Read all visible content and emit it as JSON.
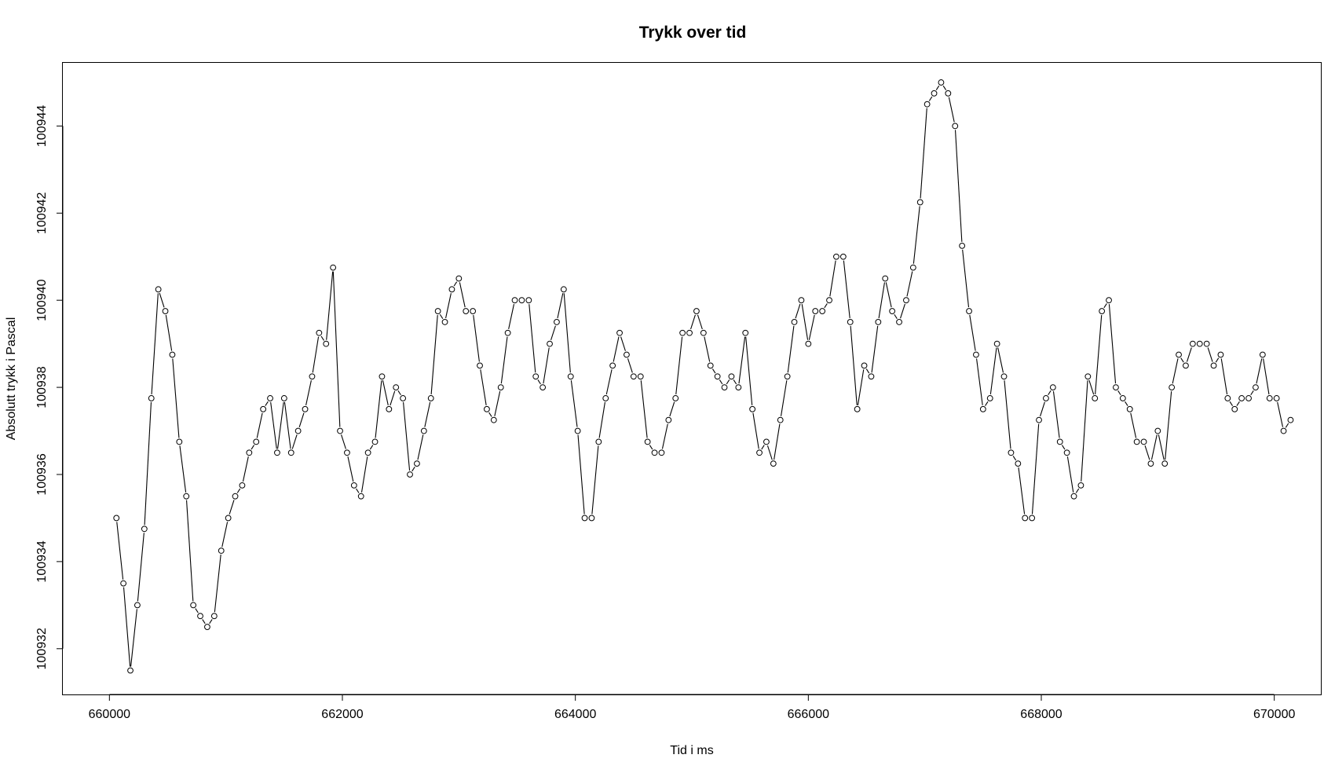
{
  "chart_data": {
    "type": "line",
    "title": "Trykk over tid",
    "xlabel": "Tid i ms",
    "ylabel": "Absolutt trykk i Pascal",
    "xlim": [
      659600,
      670400
    ],
    "ylim": [
      100930.95,
      100945.45
    ],
    "x_ticks": [
      660000,
      662000,
      664000,
      666000,
      668000,
      670000
    ],
    "x_tick_labels": [
      "660000",
      "662000",
      "664000",
      "666000",
      "668000",
      "670000"
    ],
    "y_ticks": [
      100932,
      100934,
      100936,
      100938,
      100940,
      100942,
      100944
    ],
    "y_tick_labels": [
      "100932",
      "100934",
      "100936",
      "100938",
      "100940",
      "100942",
      "100944"
    ],
    "grid": false,
    "legend": "none",
    "marker": "open-circle",
    "series": [
      {
        "x_start": 660060,
        "x_step": 60,
        "values": [
          100935,
          100933.5,
          100931.5,
          100933,
          100934.75,
          100937.75,
          100940.25,
          100939.75,
          100938.75,
          100936.75,
          100935.5,
          100933,
          100932.75,
          100932.5,
          100932.75,
          100934.25,
          100935,
          100935.5,
          100935.75,
          100936.5,
          100936.75,
          100937.5,
          100937.75,
          100936.5,
          100937.75,
          100936.5,
          100937,
          100937.5,
          100938.25,
          100939.25,
          100939,
          100940.75,
          100937,
          100936.5,
          100935.75,
          100935.5,
          100936.5,
          100936.75,
          100938.25,
          100937.5,
          100938,
          100937.75,
          100936,
          100936.25,
          100937,
          100937.75,
          100939.75,
          100939.5,
          100940.25,
          100940.5,
          100939.75,
          100939.75,
          100938.5,
          100937.5,
          100937.25,
          100938,
          100939.25,
          100940,
          100940,
          100940,
          100938.25,
          100938,
          100939,
          100939.5,
          100940.25,
          100938.25,
          100937,
          100935,
          100935,
          100936.75,
          100937.75,
          100938.5,
          100939.25,
          100938.75,
          100938.25,
          100938.25,
          100936.75,
          100936.5,
          100936.5,
          100937.25,
          100937.75,
          100939.25,
          100939.25,
          100939.75,
          100939.25,
          100938.5,
          100938.25,
          100938,
          100938.25,
          100938,
          100939.25,
          100937.5,
          100936.5,
          100936.75,
          100936.25,
          100937.25,
          100938.25,
          100939.5,
          100940,
          100939,
          100939.75,
          100939.75,
          100940,
          100941,
          100941,
          100939.5,
          100937.5,
          100938.5,
          100938.25,
          100939.5,
          100940.5,
          100939.75,
          100939.5,
          100940,
          100940.75,
          100942.25,
          100944.5,
          100944.75,
          100945,
          100944.75,
          100944,
          100941.25,
          100939.75,
          100938.75,
          100937.5,
          100937.75,
          100939,
          100938.25,
          100936.5,
          100936.25,
          100935,
          100935,
          100937.25,
          100937.75,
          100938,
          100936.75,
          100936.5,
          100935.5,
          100935.75,
          100938.25,
          100937.75,
          100939.75,
          100940,
          100938,
          100937.75,
          100937.5,
          100936.75,
          100936.75,
          100936.25,
          100937,
          100936.25,
          100938,
          100938.75,
          100938.5,
          100939,
          100939,
          100939,
          100938.5,
          100938.75,
          100937.75,
          100937.5,
          100937.75,
          100937.75,
          100938,
          100938.75,
          100937.75,
          100937.75,
          100937,
          100937.25
        ]
      }
    ],
    "colors": {
      "line": "#000000",
      "marker_fill": "#ffffff",
      "axis": "#000000",
      "background": "#ffffff"
    }
  }
}
